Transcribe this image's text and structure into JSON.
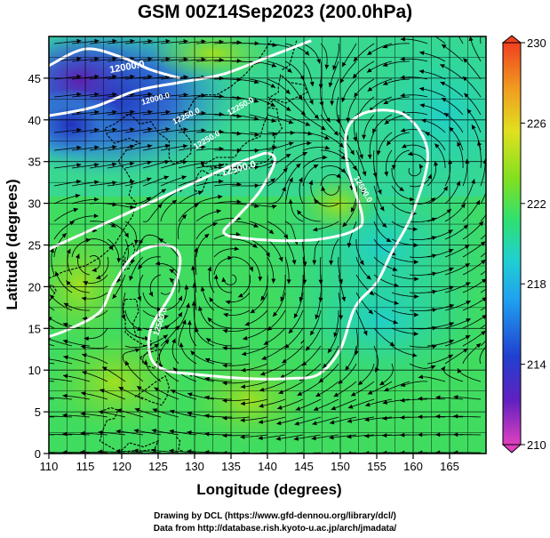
{
  "title": "GSM 00Z14Sep2023 (200.0hPa)",
  "axes": {
    "xlabel": "Longitude (degrees)",
    "ylabel": "Latitude  (degrees)",
    "x_ticks": [
      "110",
      "115",
      "120",
      "125",
      "130",
      "135",
      "140",
      "145",
      "150",
      "155",
      "160",
      "165"
    ],
    "y_ticks": [
      "0",
      "5",
      "10",
      "15",
      "20",
      "25",
      "30",
      "35",
      "40",
      "45"
    ],
    "xlim": [
      110,
      170
    ],
    "ylim": [
      0,
      50
    ]
  },
  "colorbar": {
    "ticks": [
      "230",
      "226",
      "222",
      "218",
      "214",
      "210"
    ],
    "range": [
      210,
      230
    ],
    "stops": [
      "#e040c0",
      "#6020c0",
      "#2040d0",
      "#20a0f0",
      "#20d0d0",
      "#30e070",
      "#80e020",
      "#e0e020",
      "#f0a020",
      "#f04020"
    ]
  },
  "contour_labels": [
    "12000.0",
    "12000.0",
    "12250.0",
    "12250.0",
    "12250.0",
    "12500.0",
    "12500.0",
    "12500.0"
  ],
  "credits": {
    "line1": "Drawing by DCL (https://www.gfd-dennou.org/library/dcl/)",
    "line2": "Data from http://database.rish.kyoto-u.ac.jp/arch/jmadata/"
  },
  "chart_data": {
    "type": "heatmap",
    "title": "GSM 00Z14Sep2023 (200.0hPa)",
    "xlabel": "Longitude (degrees)",
    "ylabel": "Latitude  (degrees)",
    "xlim": [
      110,
      170
    ],
    "ylim": [
      0,
      50
    ],
    "color_range": [
      210,
      230
    ],
    "contours": [
      {
        "level": 12000.0,
        "points": [
          [
            110,
            46.5
          ],
          [
            115,
            48.5
          ],
          [
            120,
            47.5
          ],
          [
            124,
            46.0
          ],
          [
            128,
            45.0
          ]
        ]
      },
      {
        "level": 12250.0,
        "points": [
          [
            110,
            40.5
          ],
          [
            116,
            41.5
          ],
          [
            122,
            43.5
          ],
          [
            128,
            44.5
          ],
          [
            134,
            45.5
          ],
          [
            140,
            47.5
          ],
          [
            146,
            49.5
          ]
        ]
      },
      {
        "level": 12500.0,
        "points": [
          [
            110,
            24.5
          ],
          [
            115,
            26.5
          ],
          [
            120,
            28.5
          ],
          [
            125,
            30.5
          ],
          [
            130,
            32.5
          ],
          [
            135,
            34.5
          ],
          [
            138,
            35.5
          ],
          [
            140,
            36.0
          ],
          [
            141,
            35.0
          ],
          [
            139,
            31.5
          ],
          [
            136,
            28.5
          ],
          [
            134,
            26.5
          ],
          [
            137,
            25.8
          ],
          [
            143,
            25.5
          ],
          [
            148,
            25.8
          ],
          [
            152,
            26.8
          ],
          [
            153,
            28.5
          ],
          [
            151,
            34.5
          ],
          [
            151,
            39.0
          ],
          [
            154,
            41.0
          ],
          [
            159,
            40.5
          ],
          [
            162,
            36.0
          ],
          [
            160,
            29.0
          ],
          [
            157,
            24.0
          ],
          [
            155,
            20.5
          ],
          [
            152,
            17.5
          ],
          [
            150,
            12.5
          ],
          [
            147,
            9.5
          ],
          [
            143,
            9.0
          ],
          [
            137,
            9.0
          ],
          [
            130,
            9.5
          ],
          [
            126,
            10.0
          ],
          [
            124,
            11.5
          ],
          [
            124,
            15.0
          ],
          [
            127,
            19.5
          ],
          [
            128,
            23.5
          ],
          [
            126,
            25.0
          ],
          [
            122,
            24.0
          ],
          [
            119,
            20.5
          ],
          [
            117,
            17.0
          ],
          [
            113,
            15.0
          ],
          [
            110,
            14.0
          ]
        ]
      }
    ]
  }
}
